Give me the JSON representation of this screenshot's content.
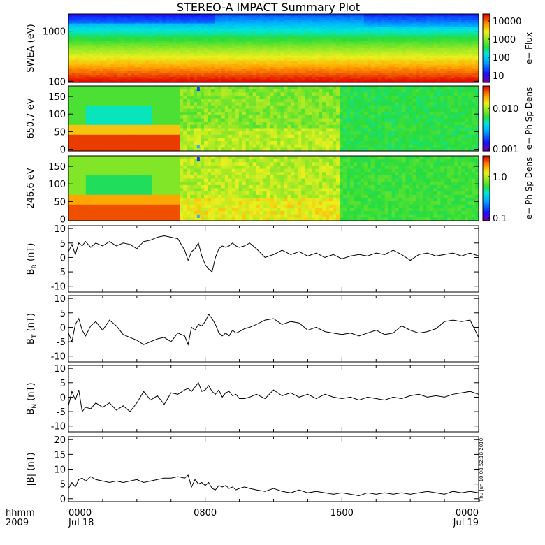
{
  "title": "STEREO-A IMPACT Summary Plot",
  "date_stamp": "Thu Jun 10 08:52:18 2010",
  "footer": {
    "left_top": "hhmm",
    "left_bottom": "2009",
    "ticks": [
      "0000",
      "0800",
      "1600",
      "0000"
    ],
    "days": [
      "Jul 18",
      "",
      "",
      "Jul 19"
    ]
  },
  "chart_data": [
    {
      "type": "heatmap",
      "ylabel": "SWEA (eV)",
      "ylim": [
        95,
        2200
      ],
      "y_scale": "log",
      "y_ticks": [
        "1000",
        "100"
      ],
      "colorbar": {
        "label": "e− Flux",
        "ticks": [
          "10000",
          "1000",
          "100",
          "10"
        ],
        "scale": "log"
      }
    },
    {
      "type": "heatmap",
      "ylabel": "650.7 eV",
      "ylim": [
        -5,
        180
      ],
      "y_ticks": [
        "150",
        "100",
        "50",
        "0"
      ],
      "colorbar": {
        "label": "e− Ph Sp Dens",
        "ticks": [
          "0.010",
          "0.001"
        ],
        "scale": "log"
      }
    },
    {
      "type": "heatmap",
      "ylabel": "246.6 eV",
      "ylim": [
        -5,
        180
      ],
      "y_ticks": [
        "150",
        "100",
        "50",
        "0"
      ],
      "colorbar": {
        "label": "e− Ph Sp Dens",
        "ticks": [
          "1.0",
          "0.1"
        ],
        "scale": "log"
      }
    },
    {
      "type": "line",
      "ylabel": "B",
      "ylabel_sub": "R",
      "ylabel_unit": "(nT)",
      "ylim": [
        -12,
        11
      ],
      "y_ticks": [
        "10",
        "5",
        "0",
        "-5",
        "-10"
      ],
      "x": [
        0,
        0.2,
        0.4,
        0.6,
        0.8,
        1.0,
        1.3,
        1.6,
        2.0,
        2.4,
        2.8,
        3.2,
        3.6,
        4.0,
        4.4,
        4.8,
        5.2,
        5.6,
        6.0,
        6.4,
        6.8,
        7.0,
        7.2,
        7.4,
        7.6,
        7.8,
        8.0,
        8.2,
        8.4,
        8.6,
        8.8,
        9.0,
        9.2,
        9.4,
        9.6,
        9.8,
        10.0,
        10.3,
        10.6,
        11.0,
        11.5,
        12.0,
        12.5,
        13.0,
        13.5,
        14.0,
        14.5,
        15.0,
        15.5,
        16.0,
        16.5,
        17.0,
        17.5,
        18.0,
        18.5,
        19.0,
        19.5,
        20.0,
        20.5,
        21.0,
        21.5,
        22.0,
        22.5,
        23.0,
        23.5,
        24.0
      ],
      "y": [
        2.0,
        4.5,
        1.0,
        5.0,
        4.0,
        5.5,
        3.5,
        5.0,
        4.0,
        5.5,
        4.0,
        5.0,
        4.5,
        3.0,
        5.5,
        6.0,
        7.0,
        7.5,
        7.0,
        6.5,
        2.5,
        -1.0,
        2.0,
        3.0,
        5.0,
        0.5,
        -2.5,
        -4.0,
        -5.0,
        0.0,
        3.0,
        4.0,
        3.5,
        4.0,
        5.0,
        4.0,
        3.5,
        4.0,
        5.0,
        3.0,
        0.0,
        1.0,
        2.5,
        1.0,
        2.0,
        0.5,
        1.5,
        0.0,
        1.0,
        -0.5,
        0.5,
        1.0,
        0.5,
        1.5,
        1.0,
        2.5,
        1.0,
        -1.0,
        1.0,
        1.5,
        0.5,
        1.0,
        1.5,
        0.5,
        1.5,
        0.5
      ]
    },
    {
      "type": "line",
      "ylabel": "B",
      "ylabel_sub": "T",
      "ylabel_unit": "(nT)",
      "ylim": [
        -12,
        11
      ],
      "y_ticks": [
        "10",
        "5",
        "0",
        "-5",
        "-10"
      ],
      "x": [
        0,
        0.2,
        0.4,
        0.6,
        0.8,
        1.0,
        1.3,
        1.6,
        2.0,
        2.4,
        2.8,
        3.2,
        3.6,
        4.0,
        4.4,
        4.8,
        5.2,
        5.6,
        6.0,
        6.4,
        6.8,
        7.0,
        7.2,
        7.4,
        7.6,
        7.8,
        8.0,
        8.2,
        8.4,
        8.6,
        8.8,
        9.0,
        9.2,
        9.4,
        9.6,
        9.8,
        10.0,
        10.3,
        10.6,
        11.0,
        11.5,
        12.0,
        12.5,
        13.0,
        13.5,
        14.0,
        14.5,
        15.0,
        15.5,
        16.0,
        16.5,
        17.0,
        17.5,
        18.0,
        18.5,
        19.0,
        19.5,
        20.0,
        20.5,
        21.0,
        21.5,
        22.0,
        22.5,
        23.0,
        23.5,
        24.0
      ],
      "y": [
        -2.0,
        -5.0,
        1.0,
        3.0,
        -1.0,
        -3.0,
        0.5,
        2.0,
        -1.0,
        2.5,
        0.5,
        -2.5,
        -3.5,
        -4.5,
        -6.0,
        -5.0,
        -4.0,
        -3.5,
        -5.0,
        -2.0,
        -3.0,
        -6.0,
        0.0,
        -1.0,
        1.0,
        0.5,
        2.0,
        4.5,
        3.0,
        1.0,
        -2.0,
        -3.0,
        -2.0,
        -3.0,
        -1.0,
        -2.0,
        -1.5,
        -0.5,
        0.0,
        1.0,
        2.5,
        3.0,
        1.0,
        2.0,
        1.5,
        -1.0,
        0.0,
        -1.5,
        -2.0,
        -2.5,
        -2.0,
        -3.0,
        -2.0,
        -1.0,
        -2.5,
        -2.0,
        0.5,
        -1.0,
        -2.0,
        -1.5,
        -0.5,
        2.0,
        2.5,
        2.0,
        2.5,
        -3.5
      ]
    },
    {
      "type": "line",
      "ylabel": "B",
      "ylabel_sub": "N",
      "ylabel_unit": "(nT)",
      "ylim": [
        -12,
        11
      ],
      "y_ticks": [
        "10",
        "5",
        "0",
        "-5",
        "-10"
      ],
      "x": [
        0,
        0.2,
        0.4,
        0.6,
        0.8,
        1.0,
        1.3,
        1.6,
        2.0,
        2.4,
        2.8,
        3.2,
        3.6,
        4.0,
        4.4,
        4.8,
        5.2,
        5.6,
        6.0,
        6.4,
        6.8,
        7.0,
        7.2,
        7.4,
        7.6,
        7.8,
        8.0,
        8.2,
        8.4,
        8.6,
        8.8,
        9.0,
        9.2,
        9.4,
        9.6,
        9.8,
        10.0,
        10.3,
        10.6,
        11.0,
        11.5,
        12.0,
        12.5,
        13.0,
        13.5,
        14.0,
        14.5,
        15.0,
        15.5,
        16.0,
        16.5,
        17.0,
        17.5,
        18.0,
        18.5,
        19.0,
        19.5,
        20.0,
        20.5,
        21.0,
        21.5,
        22.0,
        22.5,
        23.0,
        23.5,
        24.0
      ],
      "y": [
        -3.0,
        2.0,
        -1.0,
        2.5,
        -5.0,
        -3.5,
        -4.0,
        -2.0,
        -3.5,
        -2.0,
        -4.5,
        -3.0,
        -5.0,
        -2.0,
        2.0,
        -1.0,
        0.5,
        -2.5,
        1.5,
        1.0,
        2.5,
        3.0,
        2.0,
        3.5,
        5.0,
        2.0,
        2.5,
        4.0,
        2.0,
        1.0,
        2.5,
        0.0,
        1.5,
        2.0,
        0.5,
        1.0,
        -0.5,
        -0.5,
        0.0,
        1.0,
        -0.5,
        2.5,
        0.5,
        1.5,
        0.0,
        1.0,
        -0.5,
        1.0,
        0.0,
        -0.5,
        0.0,
        -1.0,
        0.0,
        -0.5,
        -1.0,
        0.0,
        -0.5,
        0.5,
        1.0,
        0.0,
        0.5,
        0.0,
        1.0,
        1.5,
        2.0,
        1.0
      ]
    },
    {
      "type": "line",
      "ylabel": "|B|",
      "ylabel_sub": "",
      "ylabel_unit": "(nT)",
      "ylim": [
        -1,
        21
      ],
      "y_ticks": [
        "20",
        "15",
        "10",
        "5",
        "0"
      ],
      "x": [
        0,
        0.2,
        0.4,
        0.6,
        0.8,
        1.0,
        1.3,
        1.6,
        2.0,
        2.4,
        2.8,
        3.2,
        3.6,
        4.0,
        4.4,
        4.8,
        5.2,
        5.6,
        6.0,
        6.4,
        6.8,
        7.0,
        7.2,
        7.4,
        7.6,
        7.8,
        8.0,
        8.2,
        8.4,
        8.6,
        8.8,
        9.0,
        9.2,
        9.4,
        9.6,
        9.8,
        10.0,
        10.3,
        10.6,
        11.0,
        11.5,
        12.0,
        12.5,
        13.0,
        13.5,
        14.0,
        14.5,
        15.0,
        15.5,
        16.0,
        16.5,
        17.0,
        17.5,
        18.0,
        18.5,
        19.0,
        19.5,
        20.0,
        20.5,
        21.0,
        21.5,
        22.0,
        22.5,
        23.0,
        23.5,
        24.0
      ],
      "y": [
        3.5,
        5.5,
        4.0,
        6.5,
        7.0,
        6.0,
        7.5,
        6.5,
        6.0,
        5.5,
        6.0,
        5.5,
        6.0,
        6.5,
        5.5,
        6.0,
        6.5,
        7.0,
        7.0,
        7.5,
        7.0,
        8.0,
        4.0,
        6.5,
        5.0,
        5.5,
        4.5,
        5.5,
        3.5,
        3.0,
        4.5,
        4.0,
        4.5,
        3.5,
        4.0,
        3.0,
        3.5,
        4.0,
        3.5,
        3.0,
        2.5,
        3.5,
        2.5,
        2.0,
        3.0,
        2.0,
        2.5,
        2.0,
        1.5,
        2.0,
        1.5,
        1.0,
        2.0,
        1.5,
        2.0,
        1.5,
        2.0,
        1.5,
        2.0,
        2.5,
        2.0,
        1.5,
        2.5,
        2.0,
        2.5,
        2.0
      ]
    }
  ]
}
